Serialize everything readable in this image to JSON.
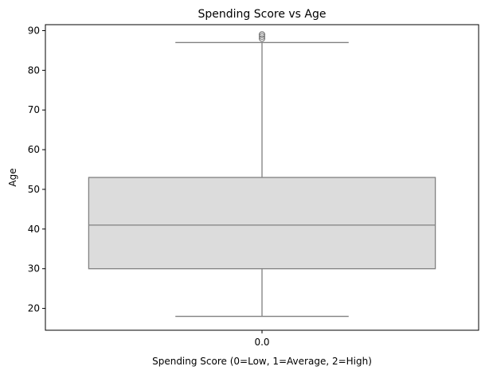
{
  "chart_data": {
    "type": "box",
    "title": "Spending Score vs Age",
    "xlabel": "Spending Score (0=Low, 1=Average, 2=High)",
    "ylabel": "Age",
    "categories": [
      "0.0"
    ],
    "ylim": [
      14.5,
      91.5
    ],
    "yticks": [
      20,
      30,
      40,
      50,
      60,
      70,
      80,
      90
    ],
    "grid": false,
    "boxes": [
      {
        "category": "0.0",
        "min": 18,
        "q1": 30,
        "median": 41,
        "q3": 53,
        "max": 87,
        "outliers": [
          88,
          88.5,
          89,
          89
        ]
      }
    ],
    "colors": {
      "box_fill": "#dcdcdc",
      "box_edge": "#808080",
      "axis": "#000000"
    }
  }
}
